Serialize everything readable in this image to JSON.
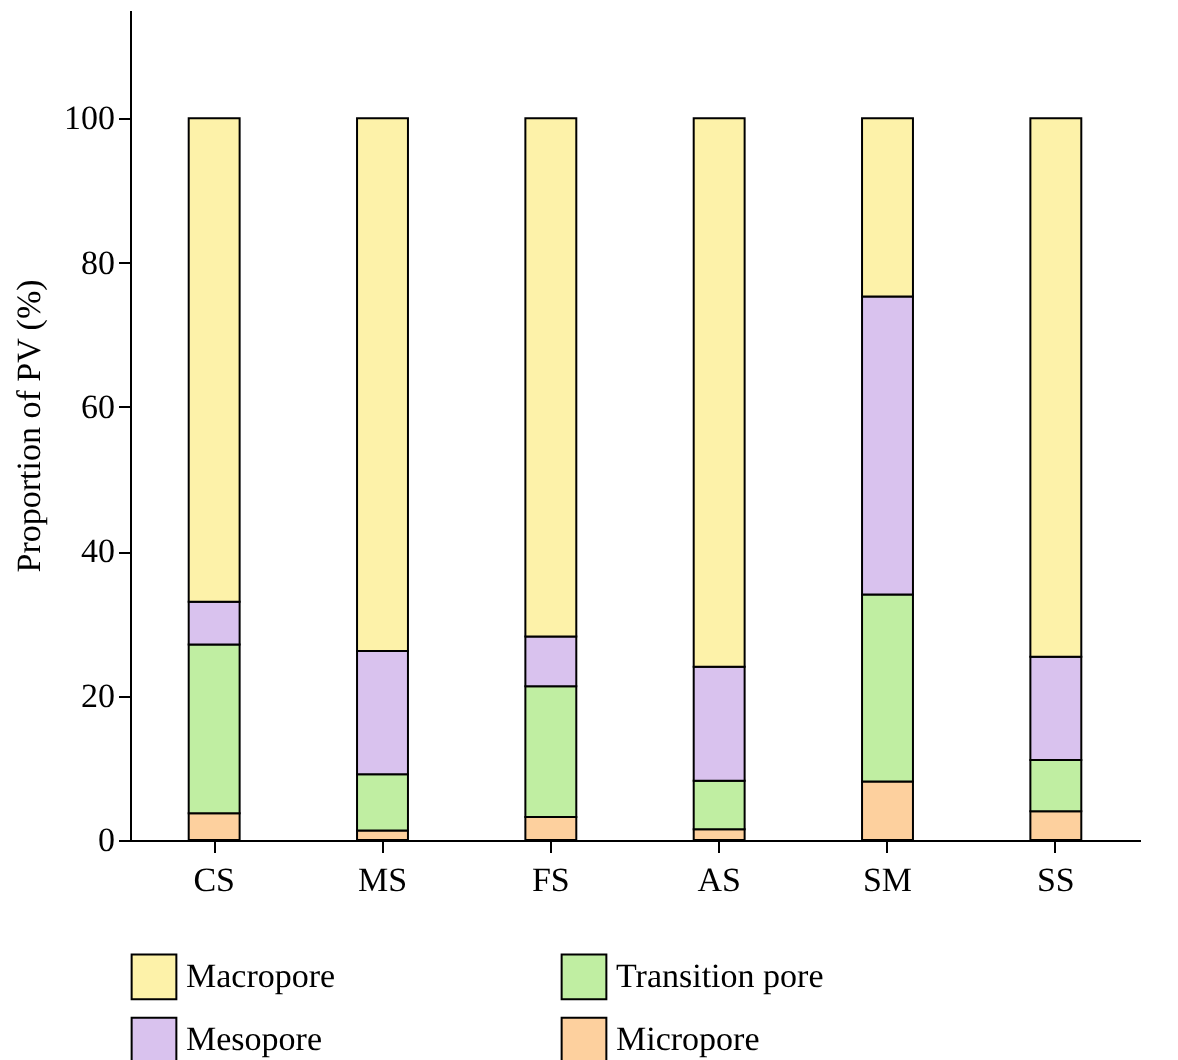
{
  "chart_data": {
    "type": "bar",
    "stacked": true,
    "ylabel": "Proportion of PV (%)",
    "categories": [
      "CS",
      "MS",
      "FS",
      "AS",
      "SM",
      "SS"
    ],
    "series": [
      {
        "name": "Micropore",
        "color": "#fdd09e",
        "values": [
          3.7,
          1.3,
          3.2,
          1.5,
          8.1,
          4.0
        ]
      },
      {
        "name": "Transition pore",
        "color": "#c0eea2",
        "values": [
          23.4,
          7.8,
          18.1,
          6.7,
          25.9,
          7.1
        ]
      },
      {
        "name": "Mesopore",
        "color": "#d9c2ee",
        "values": [
          5.9,
          17.1,
          6.9,
          15.8,
          41.3,
          14.3
        ]
      },
      {
        "name": "Macropore",
        "color": "#fdf2a9",
        "values": [
          67.0,
          73.8,
          71.8,
          76.0,
          24.7,
          74.6
        ]
      }
    ],
    "ylim": [
      0,
      115
    ],
    "yticks": [
      0,
      20,
      40,
      60,
      80,
      100
    ],
    "grid": false,
    "legend": "bottom"
  }
}
